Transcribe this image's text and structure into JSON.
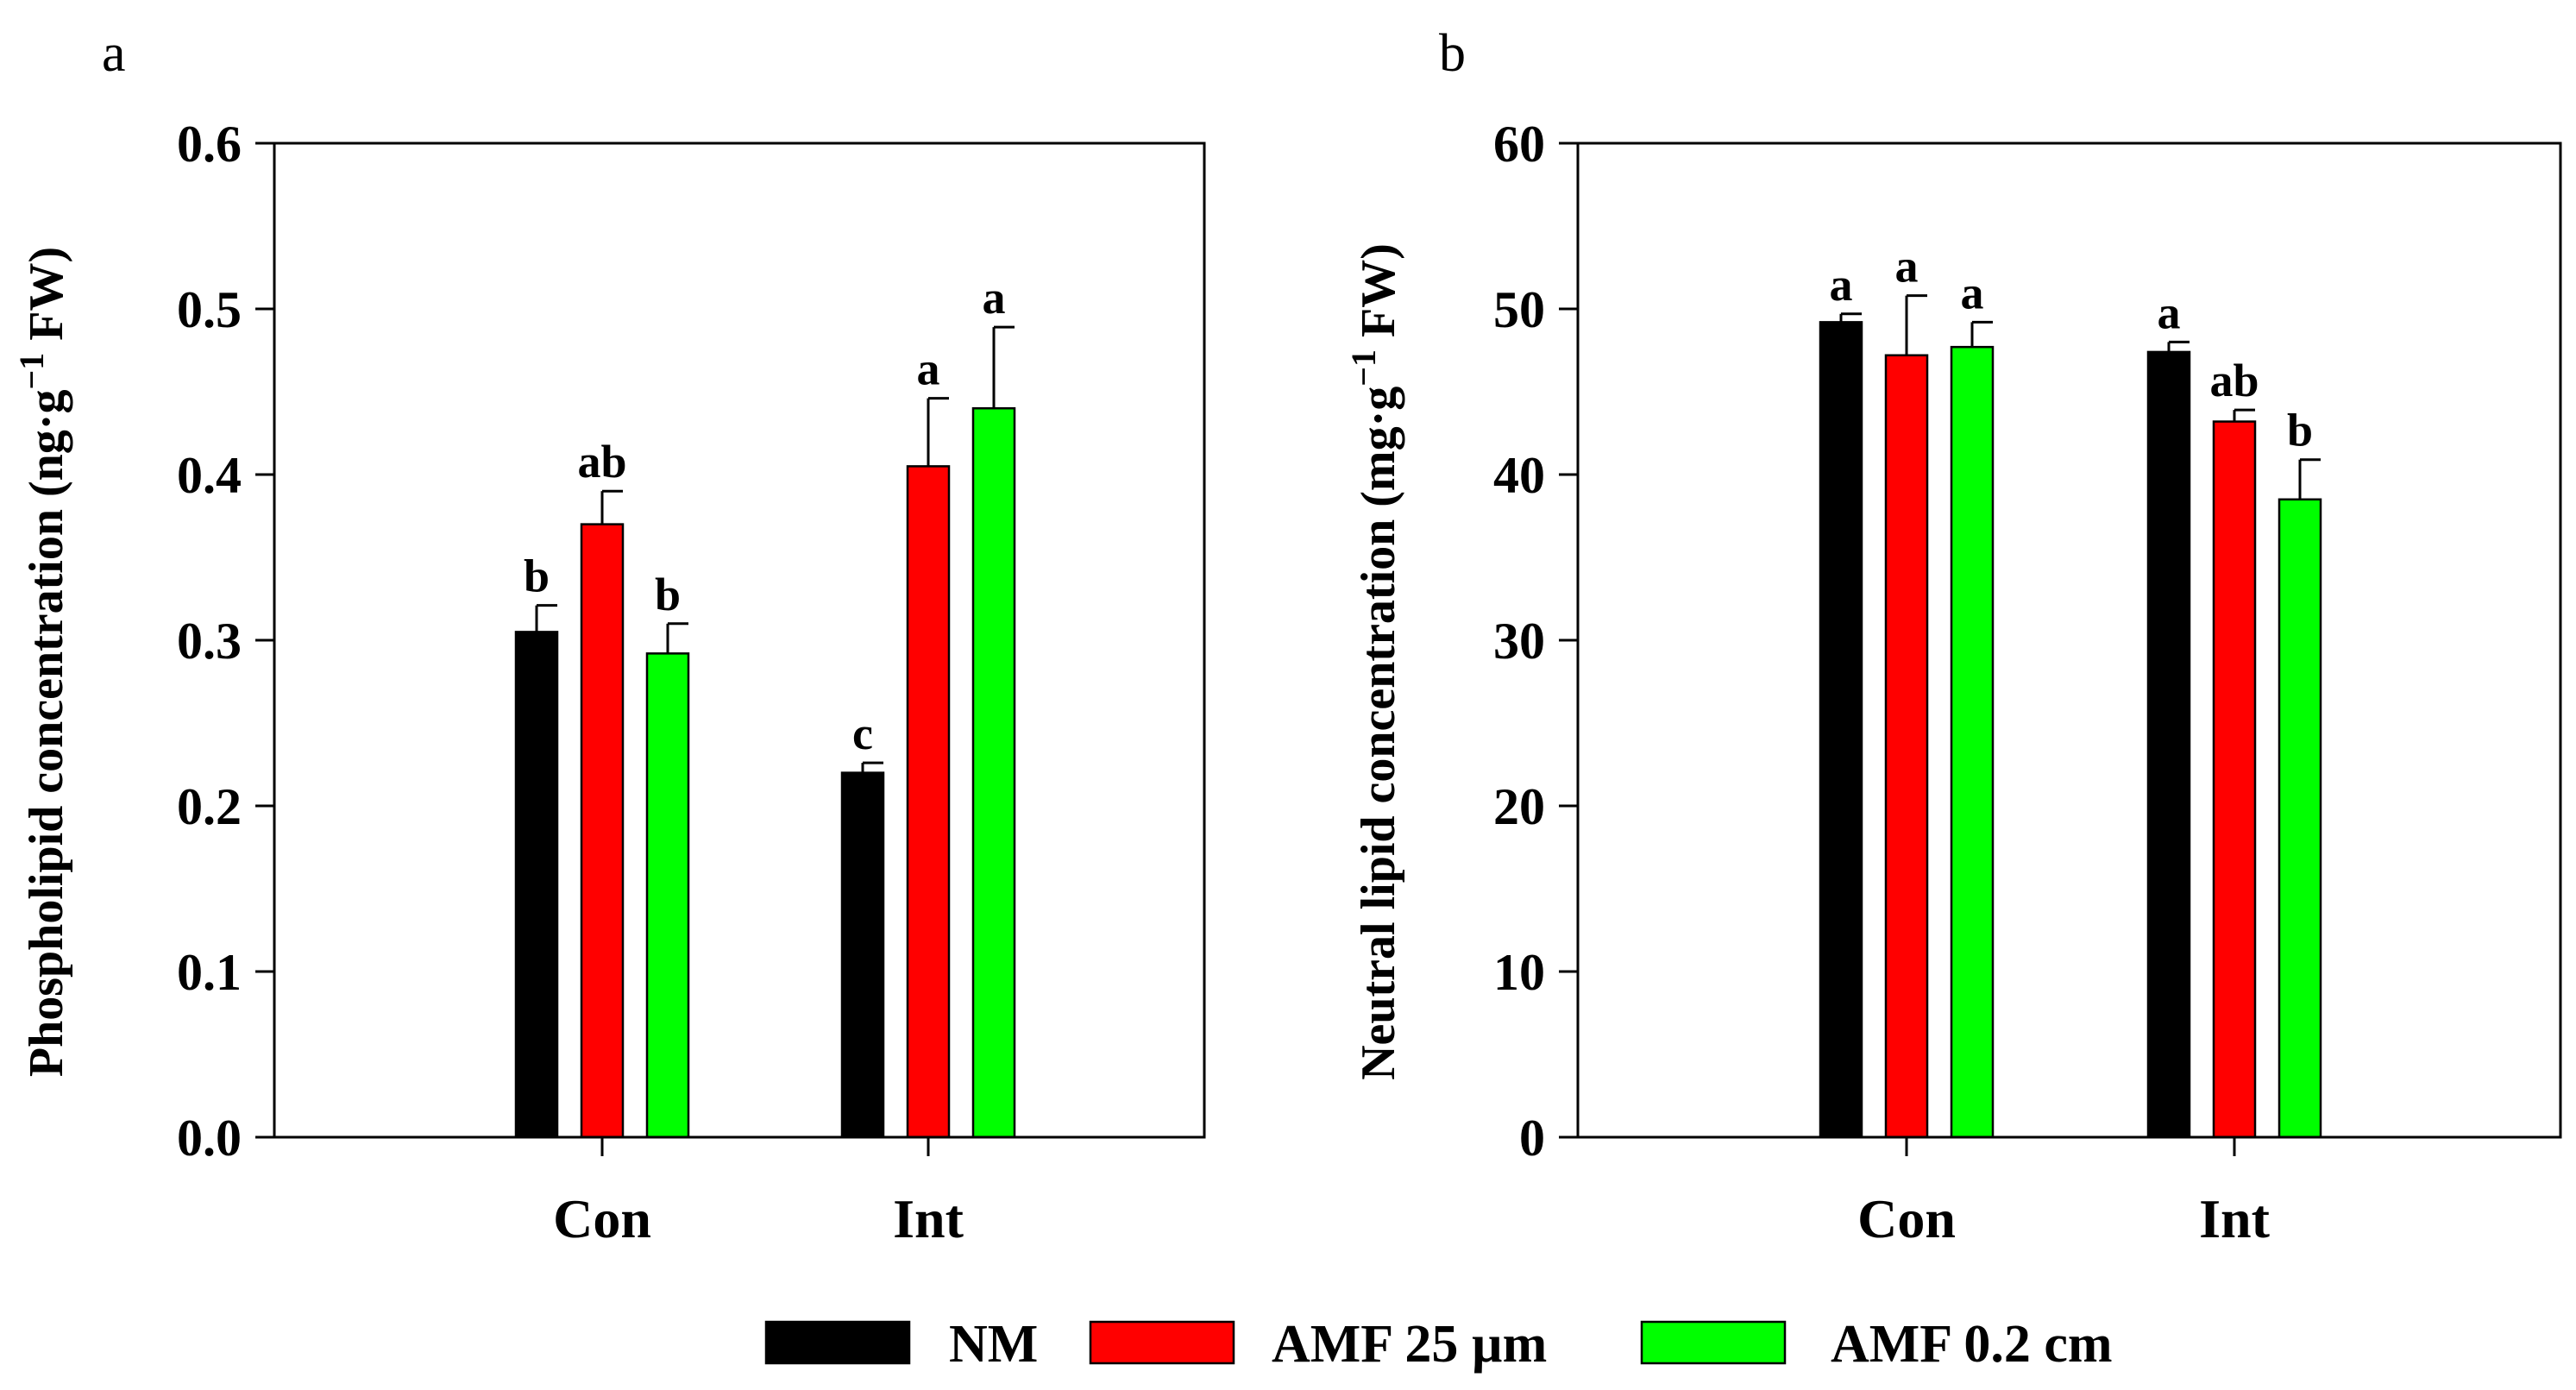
{
  "legend": [
    {
      "label": "NM",
      "color": "#000000"
    },
    {
      "label": "AMF 25 µm",
      "color": "#ff0000"
    },
    {
      "label": "AMF 0.2 cm",
      "color": "#00ff00"
    }
  ],
  "chart_data": [
    {
      "panel": "a",
      "type": "bar",
      "categories": [
        "Con",
        "Int"
      ],
      "ylabel_main": "Phospholipid concentration (ng·g",
      "ylabel_sup": "−1",
      "ylabel_end": " FW)",
      "ylim": [
        0,
        0.6
      ],
      "yticks": [
        0.0,
        0.1,
        0.2,
        0.3,
        0.4,
        0.5,
        0.6
      ],
      "tick_decimals": 1,
      "series": [
        {
          "name": "NM",
          "color": "#000000",
          "values": [
            0.305,
            0.22
          ],
          "errors": [
            0.016,
            0.006
          ],
          "letters": [
            "b",
            "c"
          ]
        },
        {
          "name": "AMF 25 µm",
          "color": "#ff0000",
          "values": [
            0.37,
            0.405
          ],
          "errors": [
            0.02,
            0.041
          ],
          "letters": [
            "ab",
            "a"
          ]
        },
        {
          "name": "AMF 0.2 cm",
          "color": "#00ff00",
          "values": [
            0.292,
            0.44
          ],
          "errors": [
            0.018,
            0.049
          ],
          "letters": [
            "b",
            "a"
          ]
        }
      ]
    },
    {
      "panel": "b",
      "type": "bar",
      "categories": [
        "Con",
        "Int"
      ],
      "ylabel_main": "Neutral lipid concentration (mg·g",
      "ylabel_sup": "−1",
      "ylabel_end": " FW)",
      "ylim": [
        0,
        60
      ],
      "yticks": [
        0,
        10,
        20,
        30,
        40,
        50,
        60
      ],
      "tick_decimals": 0,
      "series": [
        {
          "name": "NM",
          "color": "#000000",
          "values": [
            49.2,
            47.4
          ],
          "errors": [
            0.5,
            0.6
          ],
          "letters": [
            "a",
            "a"
          ]
        },
        {
          "name": "AMF 25 µm",
          "color": "#ff0000",
          "values": [
            47.2,
            43.2
          ],
          "errors": [
            3.6,
            0.7
          ],
          "letters": [
            "a",
            "ab"
          ]
        },
        {
          "name": "AMF 0.2 cm",
          "color": "#00ff00",
          "values": [
            47.7,
            38.5
          ],
          "errors": [
            1.5,
            2.4
          ],
          "letters": [
            "a",
            "b"
          ]
        }
      ]
    }
  ]
}
